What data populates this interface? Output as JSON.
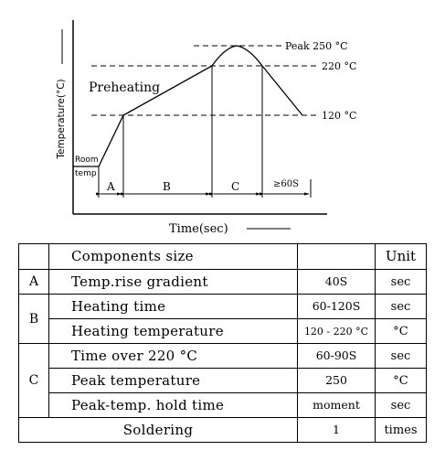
{
  "diagram": {
    "y_axis_label": "Temperature(°C)",
    "x_axis_label": "Time(sec)",
    "room_temp_label_1": "Room",
    "room_temp_label_2": "temp",
    "preheating_label": "Preheating",
    "peak_label": "Peak 250 °C",
    "line_220_label": "220 °C",
    "line_120_label": "120 °C",
    "zone_a": "A",
    "zone_b": "B",
    "zone_c": "C",
    "zone_hold": "≥60S"
  },
  "table": {
    "header": {
      "components": "Components size",
      "value": "",
      "unit": "Unit"
    },
    "rows": [
      {
        "group": "A",
        "item": "Temp.rise gradient",
        "value": "40S",
        "unit": "sec"
      },
      {
        "group": "B",
        "item": "Heating time",
        "value": "60-120S",
        "unit": "sec"
      },
      {
        "group": "",
        "item": "Heating temperature",
        "value": "120 - 220 °C",
        "unit": "°C"
      },
      {
        "group": "C",
        "item": "Time over 220 °C",
        "value": "60-90S",
        "unit": "sec"
      },
      {
        "group": "",
        "item": "Peak temperature",
        "value": "250",
        "unit": "°C"
      },
      {
        "group": "",
        "item": "Peak-temp. hold time",
        "value": "moment",
        "unit": "sec"
      }
    ],
    "footer": {
      "item": "Soldering",
      "value": "1",
      "unit": "times"
    }
  }
}
